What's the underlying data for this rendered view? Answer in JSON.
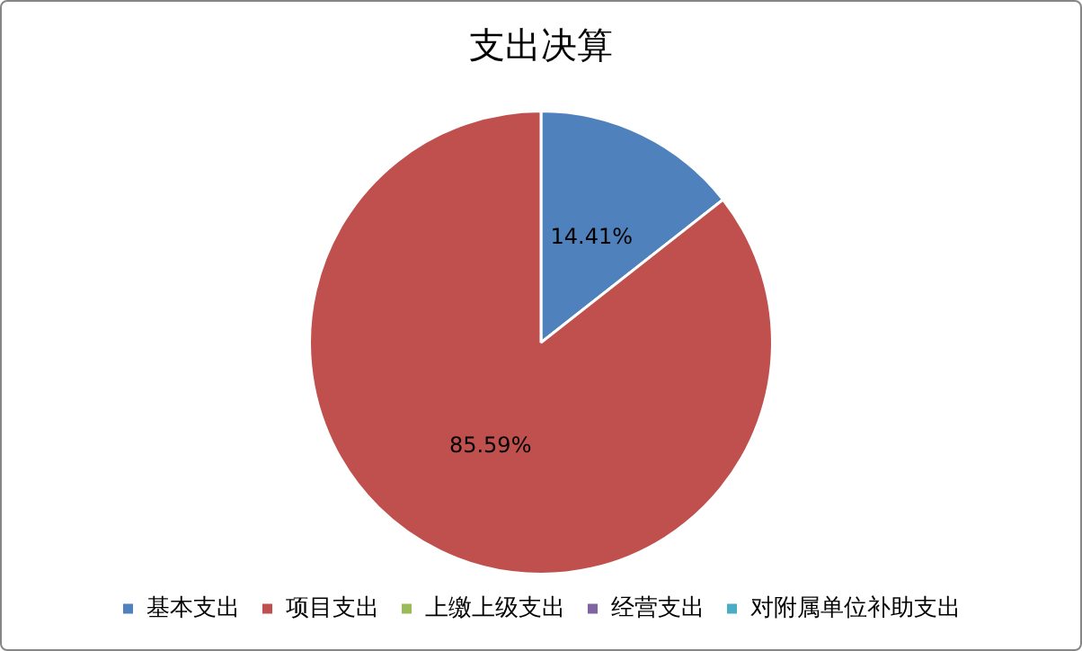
{
  "chart_data": {
    "type": "pie",
    "title": "支出决算",
    "categories": [
      "基本支出",
      "项目支出",
      "上缴上级支出",
      "经营支出",
      "对附属单位补助支出"
    ],
    "values": [
      14.41,
      85.59,
      0,
      0,
      0
    ],
    "colors": [
      "#4f81bd",
      "#c0504d",
      "#9bbb59",
      "#8064a2",
      "#4bacc6"
    ],
    "value_labels": [
      "14.41%",
      "85.59%",
      null,
      null,
      null
    ],
    "legend": "bottom"
  }
}
